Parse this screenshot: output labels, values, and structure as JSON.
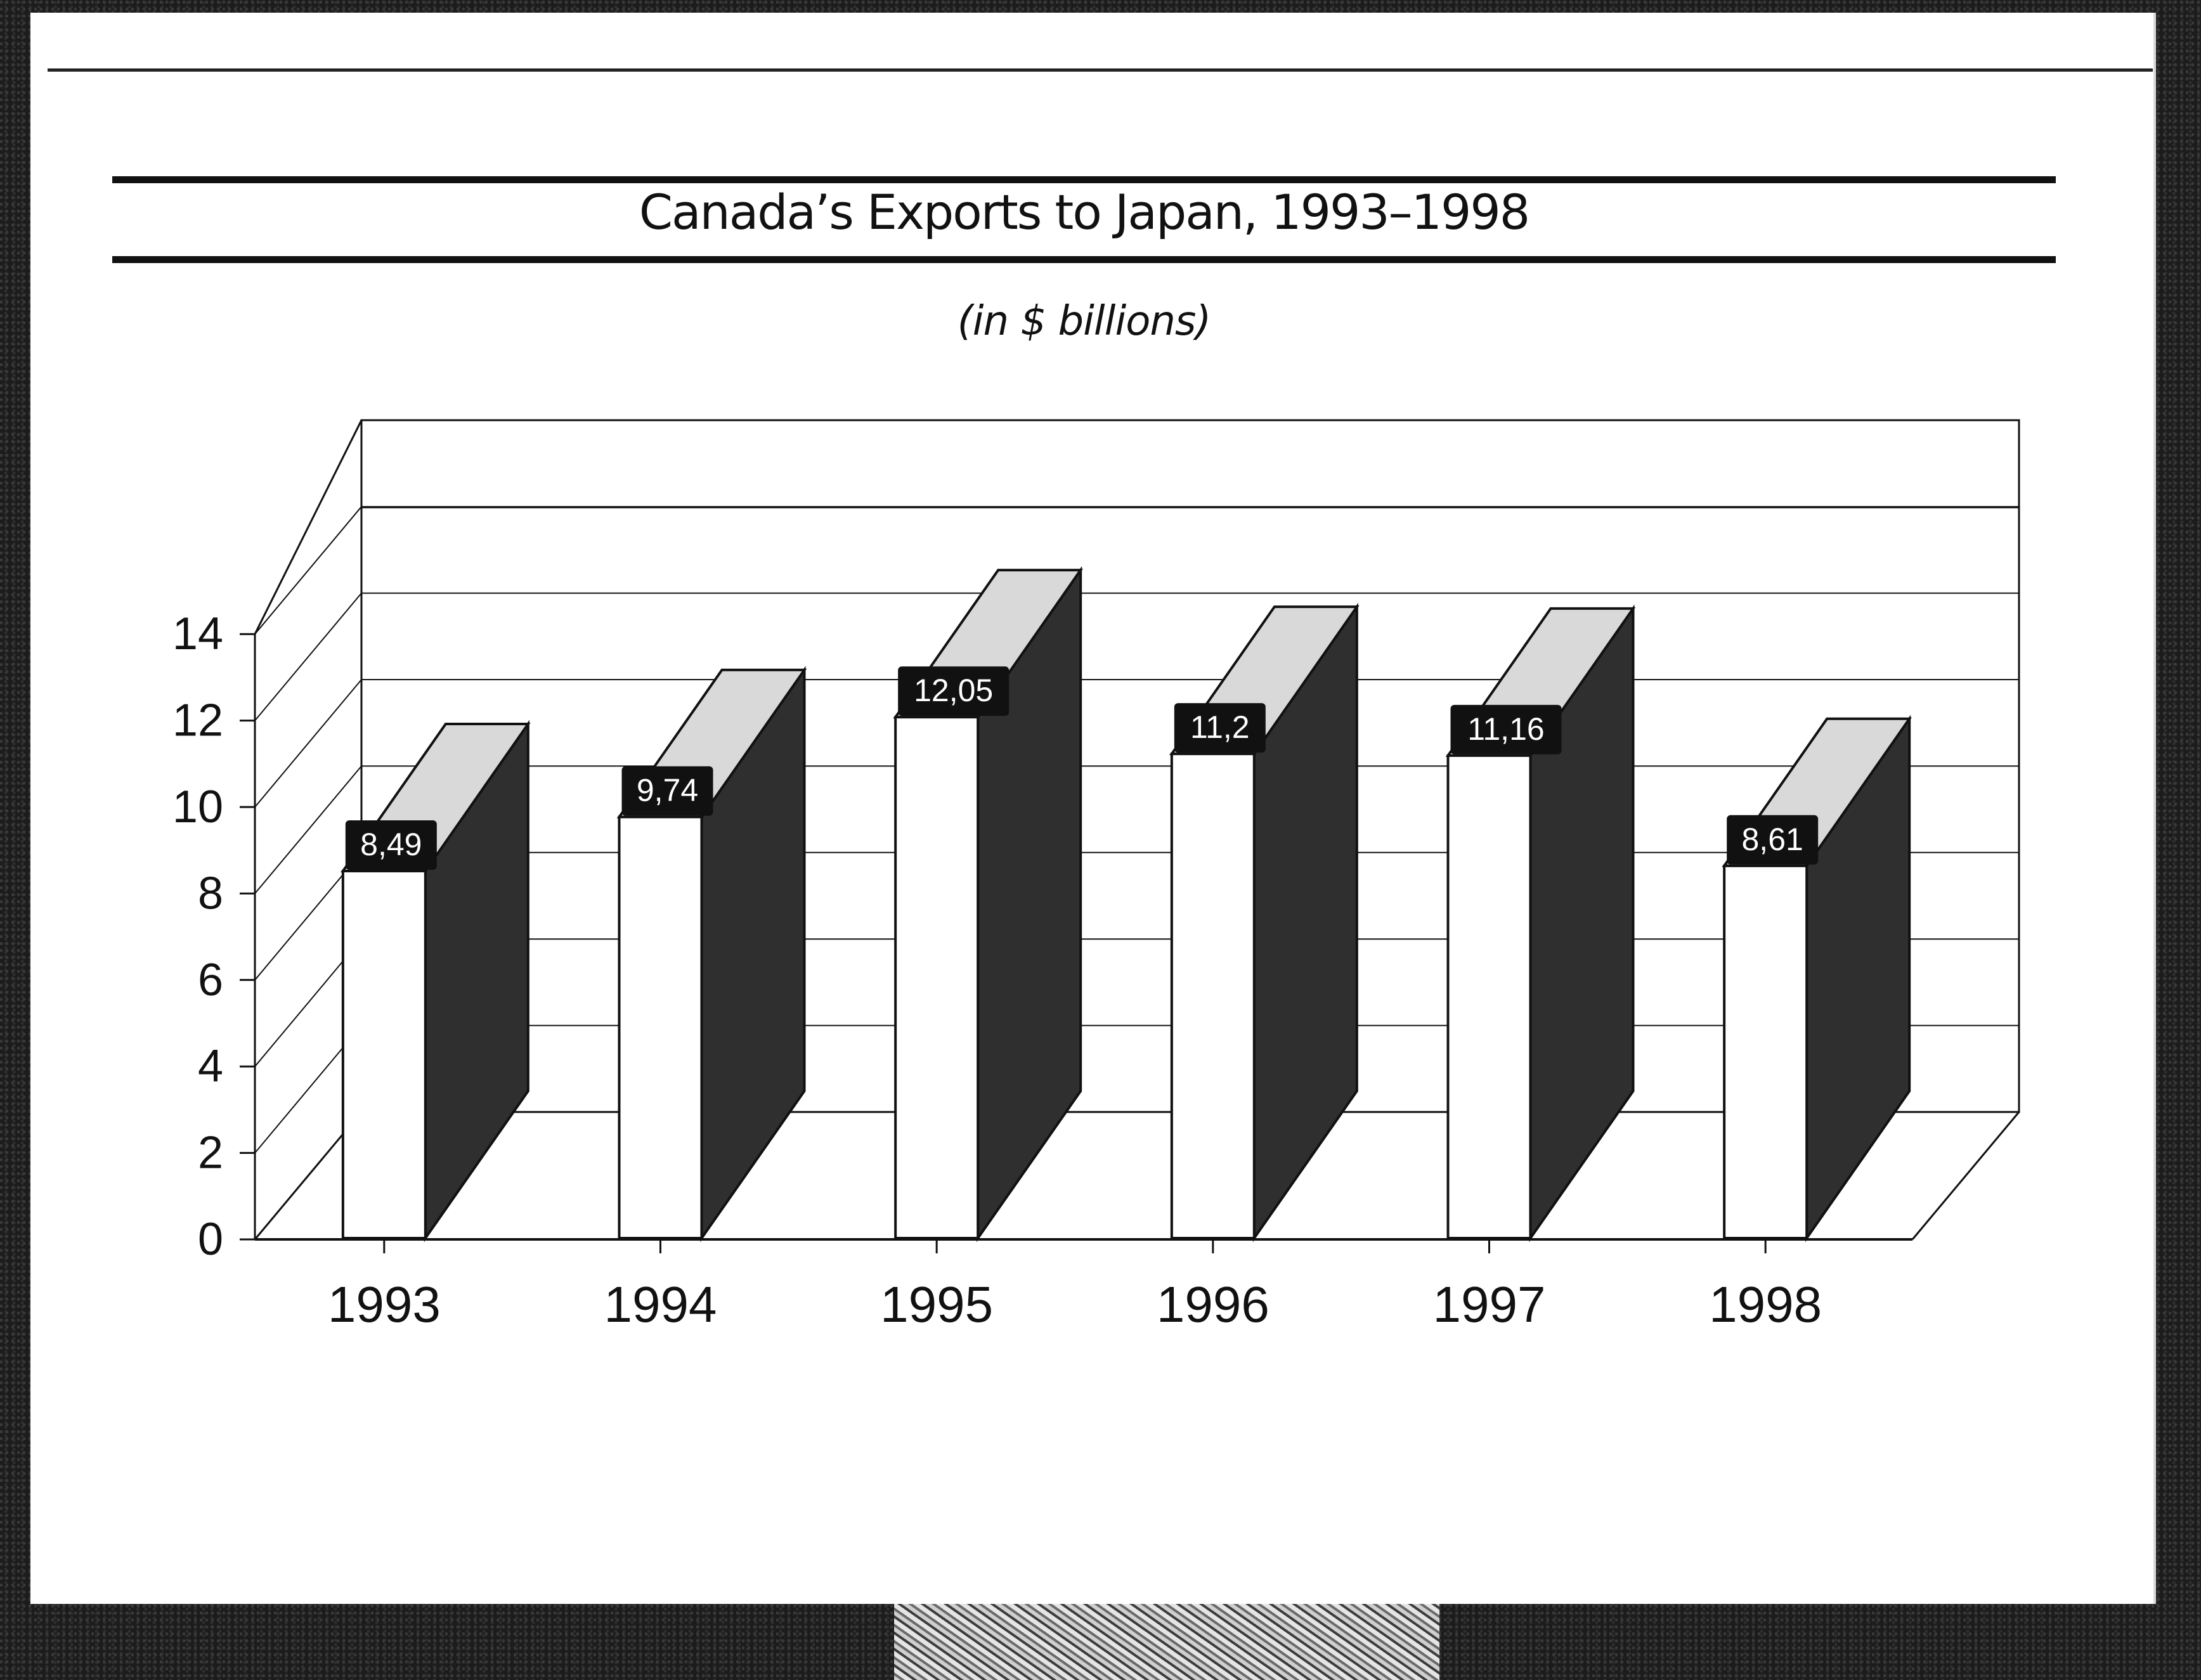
{
  "chart_data": {
    "type": "bar",
    "title": "Canada’s Exports to Japan, 1993–1998",
    "subtitle": "(in $ billions)",
    "categories": [
      "1993",
      "1994",
      "1995",
      "1996",
      "1997",
      "1998"
    ],
    "values": [
      8.49,
      9.74,
      12.05,
      11.2,
      11.16,
      8.61
    ],
    "value_labels": [
      "8,49",
      "9,74",
      "12,05",
      "11,2",
      "11,16",
      "8,61"
    ],
    "ylim": [
      0,
      16
    ],
    "yticks": [
      0,
      2,
      4,
      6,
      8,
      10,
      12,
      14
    ],
    "ytick_labels": [
      "0",
      "2",
      "4",
      "6",
      "8",
      "10",
      "12",
      "14"
    ],
    "grid": true,
    "style": "3d-bar",
    "colors": {
      "bar_front": "#ffffff",
      "bar_side": "#2f2f2f",
      "bar_top": "#d9d9d9",
      "label_bg": "#111111",
      "label_text": "#ffffff",
      "line": "#111111"
    }
  }
}
